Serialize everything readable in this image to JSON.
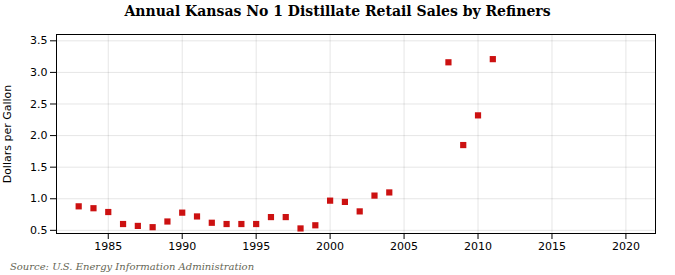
{
  "chart_data": {
    "type": "scatter",
    "title": "Annual Kansas No 1 Distillate Retail Sales by Refiners",
    "ylabel": "Dollars per Gallon",
    "annotations": [
      "Source: U.S. Energy Information Administration"
    ],
    "x": [
      1983,
      1984,
      1985,
      1986,
      1987,
      1988,
      1989,
      1990,
      1991,
      1992,
      1993,
      1994,
      1995,
      1996,
      1997,
      1998,
      1999,
      2000,
      2001,
      2002,
      2003,
      2004,
      2008,
      2009,
      2010,
      2011
    ],
    "values": [
      0.88,
      0.85,
      0.79,
      0.6,
      0.57,
      0.55,
      0.64,
      0.78,
      0.72,
      0.62,
      0.6,
      0.6,
      0.6,
      0.71,
      0.71,
      0.53,
      0.58,
      0.97,
      0.95,
      0.8,
      1.05,
      1.1,
      3.16,
      1.85,
      2.32,
      3.21
    ],
    "color": "#cc1111",
    "marker": "square",
    "xlim": [
      1981.5,
      2022
    ],
    "xticks": [
      1985,
      1990,
      1995,
      2000,
      2005,
      2010,
      2015,
      2020
    ],
    "ylim": [
      0.45,
      3.6
    ],
    "yticks": [
      0.5,
      {
        "value": 1.0,
        "label": "1.0"
      },
      1.5,
      {
        "value": 2.0,
        "label": "2.0"
      },
      2.5,
      {
        "value": 3.0,
        "label": "3.0"
      },
      3.5
    ],
    "grid": true
  }
}
